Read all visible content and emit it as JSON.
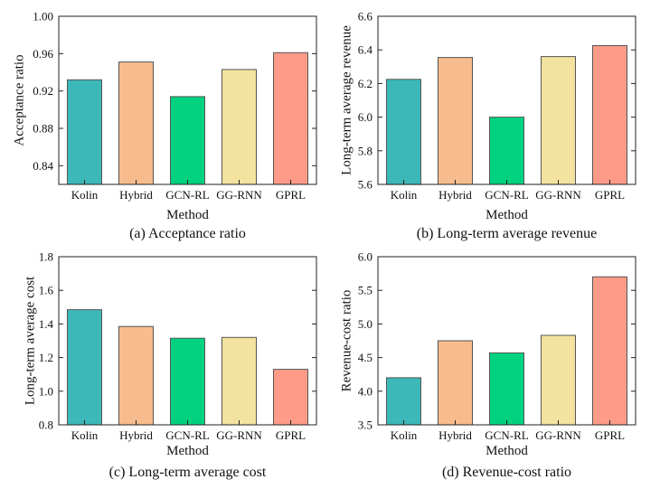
{
  "chart_data": [
    {
      "type": "bar",
      "caption": "(a) Acceptance ratio",
      "categories": [
        "Kolin",
        "Hybrid",
        "GCN-RL",
        "GG-RNN",
        "GPRL"
      ],
      "values": [
        0.932,
        0.951,
        0.914,
        0.943,
        0.961
      ],
      "xlabel": "Method",
      "ylabel": "Acceptance ratio",
      "ylim": [
        0.82,
        1.0
      ],
      "yticks": [
        "0.84",
        "0.88",
        "0.92",
        "0.96",
        "1.00"
      ],
      "yticks_values": [
        0.84,
        0.88,
        0.92,
        0.96,
        1.0
      ],
      "grid": false
    },
    {
      "type": "bar",
      "caption": "(b) Long-term average revenue",
      "categories": [
        "Kolin",
        "Hybrid",
        "GCN-RL",
        "GG-RNN",
        "GPRL"
      ],
      "values": [
        6.225,
        6.355,
        6.0,
        6.36,
        6.425
      ],
      "xlabel": "Method",
      "ylabel": "Long-term average revenue",
      "ylim": [
        5.6,
        6.6
      ],
      "yticks": [
        "5.6",
        "5.8",
        "6.0",
        "6.2",
        "6.4",
        "6.6"
      ],
      "yticks_values": [
        5.6,
        5.8,
        6.0,
        6.2,
        6.4,
        6.6
      ],
      "grid": false
    },
    {
      "type": "bar",
      "caption": "(c) Long-term average cost",
      "categories": [
        "Kolin",
        "Hybrid",
        "GCN-RL",
        "GG-RNN",
        "GPRL"
      ],
      "values": [
        1.485,
        1.385,
        1.315,
        1.32,
        1.13
      ],
      "xlabel": "Method",
      "ylabel": "Long-term average cost",
      "ylim": [
        0.8,
        1.8
      ],
      "yticks": [
        "0.8",
        "1.0",
        "1.2",
        "1.4",
        "1.6",
        "1.8"
      ],
      "yticks_values": [
        0.8,
        1.0,
        1.2,
        1.4,
        1.6,
        1.8
      ],
      "grid": false
    },
    {
      "type": "bar",
      "caption": "(d) Revenue-cost ratio",
      "categories": [
        "Kolin",
        "Hybrid",
        "GCN-RL",
        "GG-RNN",
        "GPRL"
      ],
      "values": [
        4.2,
        4.75,
        4.57,
        4.83,
        5.7
      ],
      "xlabel": "Method",
      "ylabel": "Revenue-cost ratio",
      "ylim": [
        3.5,
        6.0
      ],
      "yticks": [
        "3.5",
        "4.0",
        "4.5",
        "5.0",
        "5.5",
        "6.0"
      ],
      "yticks_values": [
        3.5,
        4.0,
        4.5,
        5.0,
        5.5,
        6.0
      ],
      "grid": false
    }
  ],
  "colors": {
    "Kolin": "#3db8b8",
    "Hybrid": "#f7bc8d",
    "GCN-RL": "#00d27f",
    "GG-RNN": "#f4e2a0",
    "GPRL": "#fd9b88",
    "bar_edge": "#555555",
    "axis": "#222222"
  }
}
